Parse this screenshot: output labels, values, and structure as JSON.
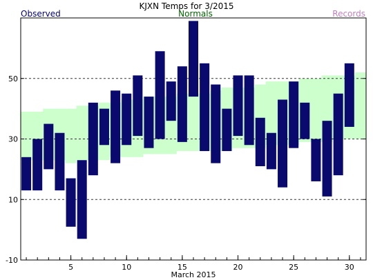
{
  "chart_data": {
    "type": "bar",
    "title": "KJXN Temps for 3/2015",
    "xlabel": "March 2015",
    "ylabel": "",
    "legend": {
      "observed_label": "Observed",
      "normals_label": "Normals",
      "records_label": "Records"
    },
    "colors": {
      "observed": "#0a0a6e",
      "normals": "#ccffcc",
      "records_text": "#c080c0",
      "normals_text": "#006400",
      "observed_text": "#000080"
    },
    "ylim": [
      -10,
      70
    ],
    "y_ticks": [
      -10,
      10,
      30,
      50
    ],
    "y_gridlines": [
      10,
      30,
      50
    ],
    "x_ticks": [
      5,
      10,
      15,
      20,
      25,
      30
    ],
    "days": [
      1,
      2,
      3,
      4,
      5,
      6,
      7,
      8,
      9,
      10,
      11,
      12,
      13,
      14,
      15,
      16,
      17,
      18,
      19,
      20,
      21,
      22,
      23,
      24,
      25,
      26,
      27,
      28,
      29,
      30,
      31
    ],
    "observed_high": [
      24,
      30,
      35,
      32,
      17,
      23,
      42,
      40,
      46,
      45,
      51,
      44,
      59,
      49,
      54,
      69,
      55,
      48,
      40,
      51,
      51,
      37,
      32,
      43,
      49,
      42,
      30,
      36,
      45,
      55,
      null
    ],
    "observed_low": [
      13,
      13,
      20,
      13,
      1,
      -3,
      18,
      28,
      22,
      28,
      31,
      27,
      30,
      36,
      29,
      44,
      26,
      22,
      26,
      31,
      28,
      21,
      20,
      14,
      27,
      30,
      16,
      11,
      18,
      34,
      null
    ],
    "normal_high": [
      39,
      39,
      40,
      40,
      40,
      41,
      41,
      42,
      42,
      43,
      43,
      44,
      44,
      44,
      45,
      45,
      45,
      46,
      47,
      47,
      47,
      48,
      49,
      49,
      49,
      50,
      50,
      51,
      51,
      51,
      52
    ],
    "normal_low": [
      23,
      23,
      23,
      23,
      22,
      23,
      23,
      23,
      24,
      24,
      24,
      25,
      25,
      25,
      26,
      26,
      26,
      26,
      26,
      27,
      27,
      27,
      28,
      28,
      28,
      29,
      29,
      29,
      30,
      30,
      30
    ]
  }
}
